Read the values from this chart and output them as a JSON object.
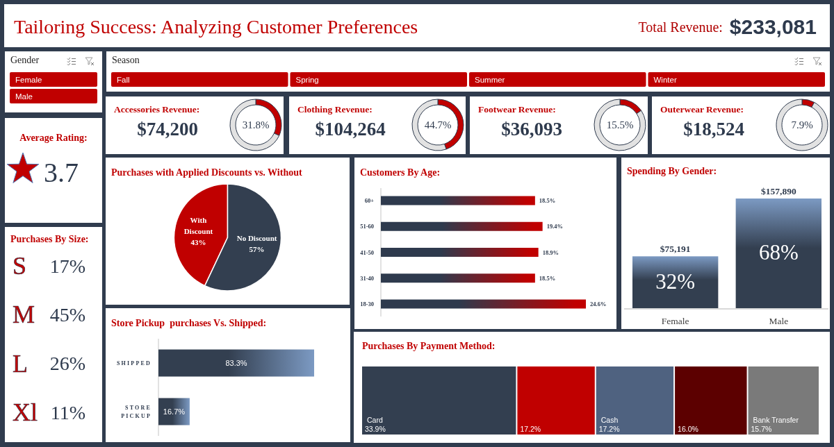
{
  "chart_data": [
    {
      "type": "other",
      "title": "Tailoring Success: Analyzing Customer Preferences",
      "annotations": [
        "Total Revenue:",
        "$233,081"
      ]
    },
    {
      "type": "other",
      "title": "Gender",
      "annotations": [
        "Female",
        "Male"
      ]
    },
    {
      "type": "other",
      "title": "Season",
      "annotations": [
        "Fall",
        "Spring",
        "Summer",
        "Winter"
      ]
    },
    {
      "type": "donut",
      "title": "Accessories Revenue:",
      "categories": [
        null,
        null
      ],
      "values": [
        31.8,
        68.2
      ],
      "colors": [
        "#c00000",
        "#e2e2e2"
      ],
      "annotations": [
        "$74,200",
        "31.8%"
      ]
    },
    {
      "type": "donut",
      "title": "Clothing Revenue:",
      "categories": [
        null,
        null
      ],
      "values": [
        44.7,
        55.3
      ],
      "colors": [
        "#c00000",
        "#e2e2e2"
      ],
      "annotations": [
        "$104,264",
        "44.7%"
      ]
    },
    {
      "type": "donut",
      "title": "Footwear Revenue:",
      "categories": [
        null,
        null
      ],
      "values": [
        15.5,
        84.5
      ],
      "colors": [
        "#c00000",
        "#e2e2e2"
      ],
      "annotations": [
        "$36,093",
        "15.5%"
      ]
    },
    {
      "type": "donut",
      "title": "Outerwear Revenue:",
      "categories": [
        null,
        null
      ],
      "values": [
        7.9,
        92.1
      ],
      "colors": [
        "#c00000",
        "#e2e2e2"
      ],
      "annotations": [
        "$18,524",
        "7.9%"
      ]
    },
    {
      "type": "other",
      "title": "Average Rating:",
      "annotations": [
        "3.7"
      ]
    },
    {
      "type": "pie",
      "title": "Purchases with Applied Discounts vs. Without",
      "categories": [
        "With Discount",
        "No Discount"
      ],
      "values": [
        43,
        57
      ],
      "colors": [
        "#c00000",
        "#333f50"
      ],
      "value_labels": [
        "43%",
        "57%"
      ]
    },
    {
      "type": "bar",
      "orientation": "horizontal",
      "title": "Customers By Age:",
      "categories": [
        "60+",
        "51-60",
        "41-50",
        "31-40",
        "18-30"
      ],
      "values": [
        18.5,
        19.4,
        18.9,
        18.5,
        24.6
      ],
      "color": "#c00000",
      "value_labels": [
        "18.5%",
        "19.4%",
        "18.9%",
        "18.5%",
        "24.6%"
      ]
    },
    {
      "type": "bar",
      "title": "Spending By Gender:",
      "categories": [
        "Female",
        "Male"
      ],
      "values": [
        75191,
        157890
      ],
      "color": "#333f50",
      "value_labels": [
        "$75,191",
        "$157,890"
      ],
      "annotations": [
        "32%",
        "68%"
      ]
    },
    {
      "type": "other",
      "title": "Purchases By Size:",
      "categories": [
        "S",
        "M",
        "L",
        "Xl"
      ],
      "value_labels": [
        "17%",
        "45%",
        "26%",
        "11%"
      ]
    },
    {
      "type": "bar",
      "orientation": "horizontal",
      "title": "Store Pickup  purchases Vs. Shipped:",
      "categories": [
        "SHIPPED",
        "STORE PICKUP"
      ],
      "values": [
        83.3,
        16.7
      ],
      "color": "#333f50",
      "value_labels": [
        "83.3%",
        "16.7%"
      ]
    },
    {
      "type": "other",
      "title": "Purchases By Payment Method:",
      "categories": [
        "Card",
        null,
        "Cash",
        null,
        "Bank Transfer"
      ],
      "values": [
        33.9,
        17.2,
        17.2,
        16.0,
        15.7
      ],
      "colors": [
        "#333f50",
        "#c00000",
        "#4f6280",
        "#5c0000",
        "#7a7a7a"
      ],
      "value_labels": [
        "33.9%",
        "17.2%",
        "17.2%",
        "16.0%",
        "15.7%"
      ]
    }
  ]
}
